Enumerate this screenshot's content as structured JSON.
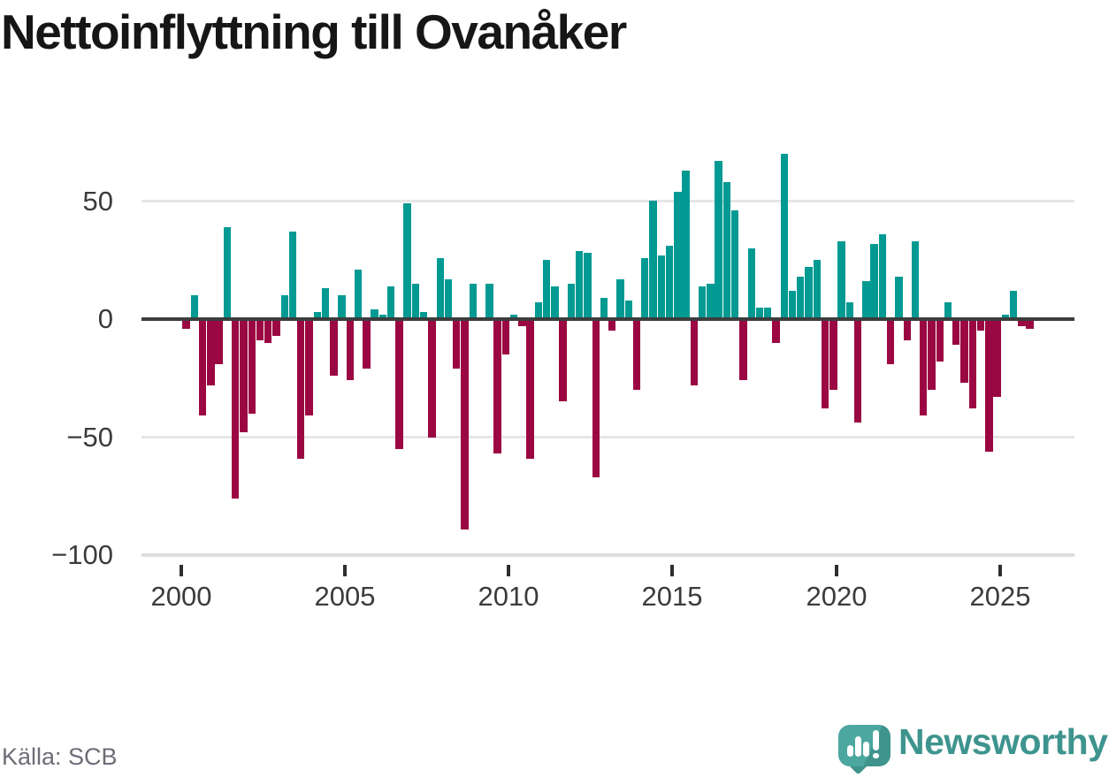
{
  "title": "Nettoinflyttning till Ovanåker",
  "source": "Källa: SCB",
  "branding": {
    "name": "Newsworthy",
    "icon": "speech-bubble-bar-chart-icon"
  },
  "colors": {
    "positive_bar": "#009a93",
    "negative_bar": "#9b0742",
    "zero_line": "#3d3d3d",
    "gridline": "#e6e6e6",
    "axis_text": "#3b3b3b",
    "source_text": "#6d6d77",
    "brand_teal": "#3e948e",
    "title_text": "#161616"
  },
  "chart_data": {
    "type": "bar",
    "title": "Nettoinflyttning till Ovanåker",
    "frequency": "quarterly",
    "start_year": 2000,
    "end_year": 2025,
    "n_points": 104,
    "grid": "horizontal",
    "legend": "none",
    "ylim": [
      -100,
      75
    ],
    "y_ticks": [
      {
        "label": "50",
        "value": 50
      },
      {
        "label": "0",
        "value": 0
      },
      {
        "label": "−50",
        "value": -50
      },
      {
        "label": "−100",
        "value": -100
      }
    ],
    "x_ticks": [
      {
        "label": "2000",
        "year": 2000
      },
      {
        "label": "2005",
        "year": 2005
      },
      {
        "label": "2010",
        "year": 2010
      },
      {
        "label": "2015",
        "year": 2015
      },
      {
        "label": "2020",
        "year": 2020
      },
      {
        "label": "2025",
        "year": 2025
      }
    ],
    "series": [
      {
        "name": "Nettoinflyttning",
        "values": [
          -4,
          10,
          -41,
          -28,
          -19,
          39,
          -76,
          -48,
          -40,
          -9,
          -10,
          -7,
          10,
          37,
          -59,
          -41,
          3,
          13,
          -24,
          10,
          -26,
          21,
          -21,
          4,
          2,
          14,
          -55,
          49,
          15,
          3,
          -50,
          26,
          17,
          -21,
          -89,
          15,
          0,
          15,
          -57,
          -15,
          2,
          -3,
          -59,
          7,
          25,
          14,
          -35,
          15,
          29,
          28,
          -67,
          9,
          -5,
          17,
          8,
          -30,
          26,
          50,
          27,
          31,
          54,
          63,
          -28,
          14,
          15,
          67,
          58,
          46,
          -26,
          30,
          5,
          5,
          -10,
          70,
          12,
          18,
          22,
          25,
          -38,
          -30,
          33,
          7,
          -44,
          16,
          32,
          36,
          -19,
          18,
          -9,
          33,
          -41,
          -30,
          -18,
          7,
          -11,
          -27,
          -38,
          -5,
          -56,
          -33,
          2,
          12,
          -3,
          -4
        ]
      }
    ]
  }
}
